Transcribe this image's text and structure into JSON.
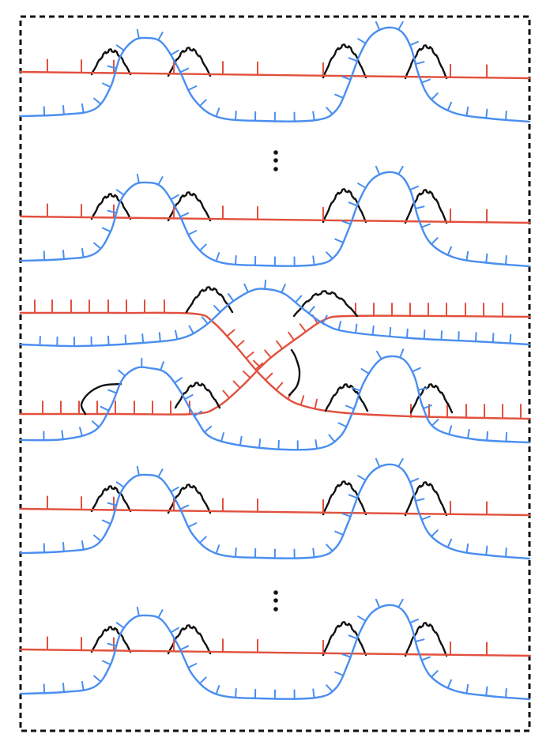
{
  "diagram": {
    "colors": {
      "frame": "#111111",
      "red_curve": "#e2503d",
      "blue_curve": "#4a8ef0",
      "black_arc": "#111111"
    },
    "strands": {
      "standard_bands": 4,
      "ellipsis_markers": 2,
      "crossing_bands": 1
    }
  }
}
